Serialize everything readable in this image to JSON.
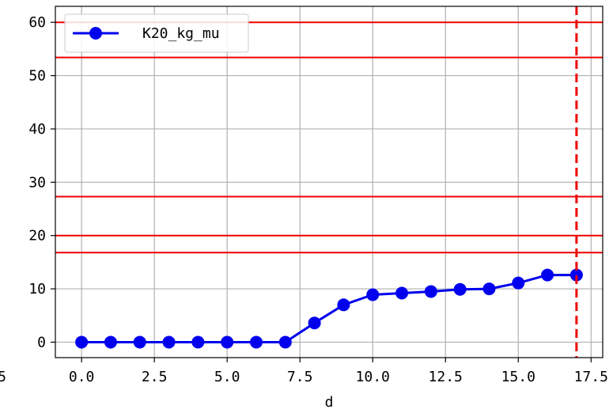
{
  "chart_data": {
    "type": "line",
    "title": "",
    "xlabel": "d",
    "ylabel": "",
    "xlim": [
      -0.9,
      17.9
    ],
    "ylim": [
      -2.9,
      63
    ],
    "xticks": [
      0.0,
      2.5,
      5.0,
      7.5,
      10.0,
      12.5,
      15.0,
      17.5
    ],
    "xtick_labels": [
      "0.0",
      "2.5",
      "5.0",
      "7.5",
      "10.0",
      "12.5",
      "15.0",
      "17.5"
    ],
    "partial_left_tick_label": "5",
    "yticks": [
      0,
      10,
      20,
      30,
      40,
      50,
      60
    ],
    "ytick_labels": [
      "0",
      "10",
      "20",
      "30",
      "40",
      "50",
      "60"
    ],
    "grid": true,
    "legend_position": "top-left",
    "series": [
      {
        "name": "K20_kg_mu",
        "color": "#0000ee",
        "marker": "circle",
        "x": [
          0,
          1,
          2,
          3,
          4,
          5,
          6,
          7,
          8,
          9,
          10,
          11,
          12,
          13,
          14,
          15,
          16,
          17
        ],
        "values": [
          0,
          0,
          0,
          0,
          0,
          0,
          0,
          0,
          3.6,
          7.0,
          8.9,
          9.2,
          9.5,
          9.9,
          10.0,
          11.1,
          12.6,
          12.6
        ]
      }
    ],
    "hlines": {
      "color": "#ee0000",
      "values": [
        16.8,
        20.0,
        27.3,
        53.4,
        60.0
      ]
    },
    "vline": {
      "color": "#ee0000",
      "style": "dashed",
      "value": 17
    }
  }
}
